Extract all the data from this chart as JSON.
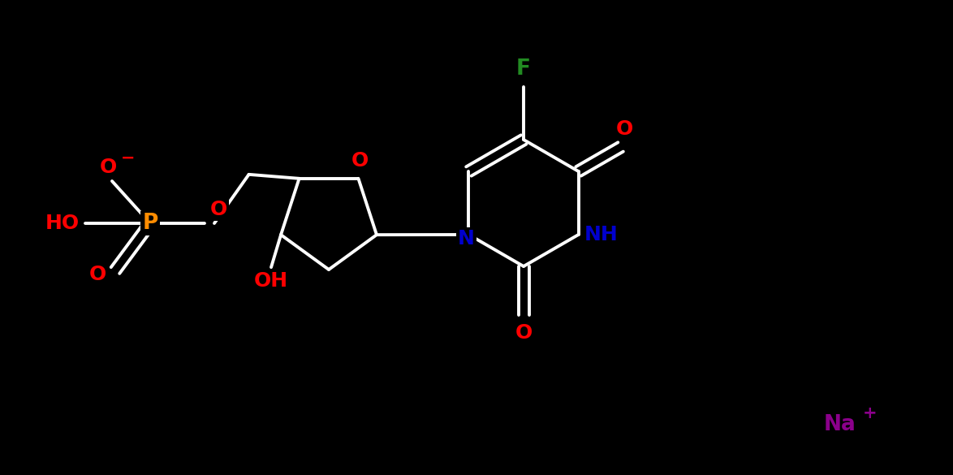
{
  "bg_color": "#000000",
  "bond_color": "#ffffff",
  "bond_width": 2.8,
  "atom_colors": {
    "O": "#ff0000",
    "P": "#ff8c00",
    "N": "#0000cd",
    "F": "#228b22",
    "Na": "#8b008b",
    "HO": "#ff0000",
    "OH": "#ff0000",
    "NH": "#0000cd",
    "C": "#ffffff"
  },
  "font_size": 18,
  "fig_width": 11.74,
  "fig_height": 5.85
}
